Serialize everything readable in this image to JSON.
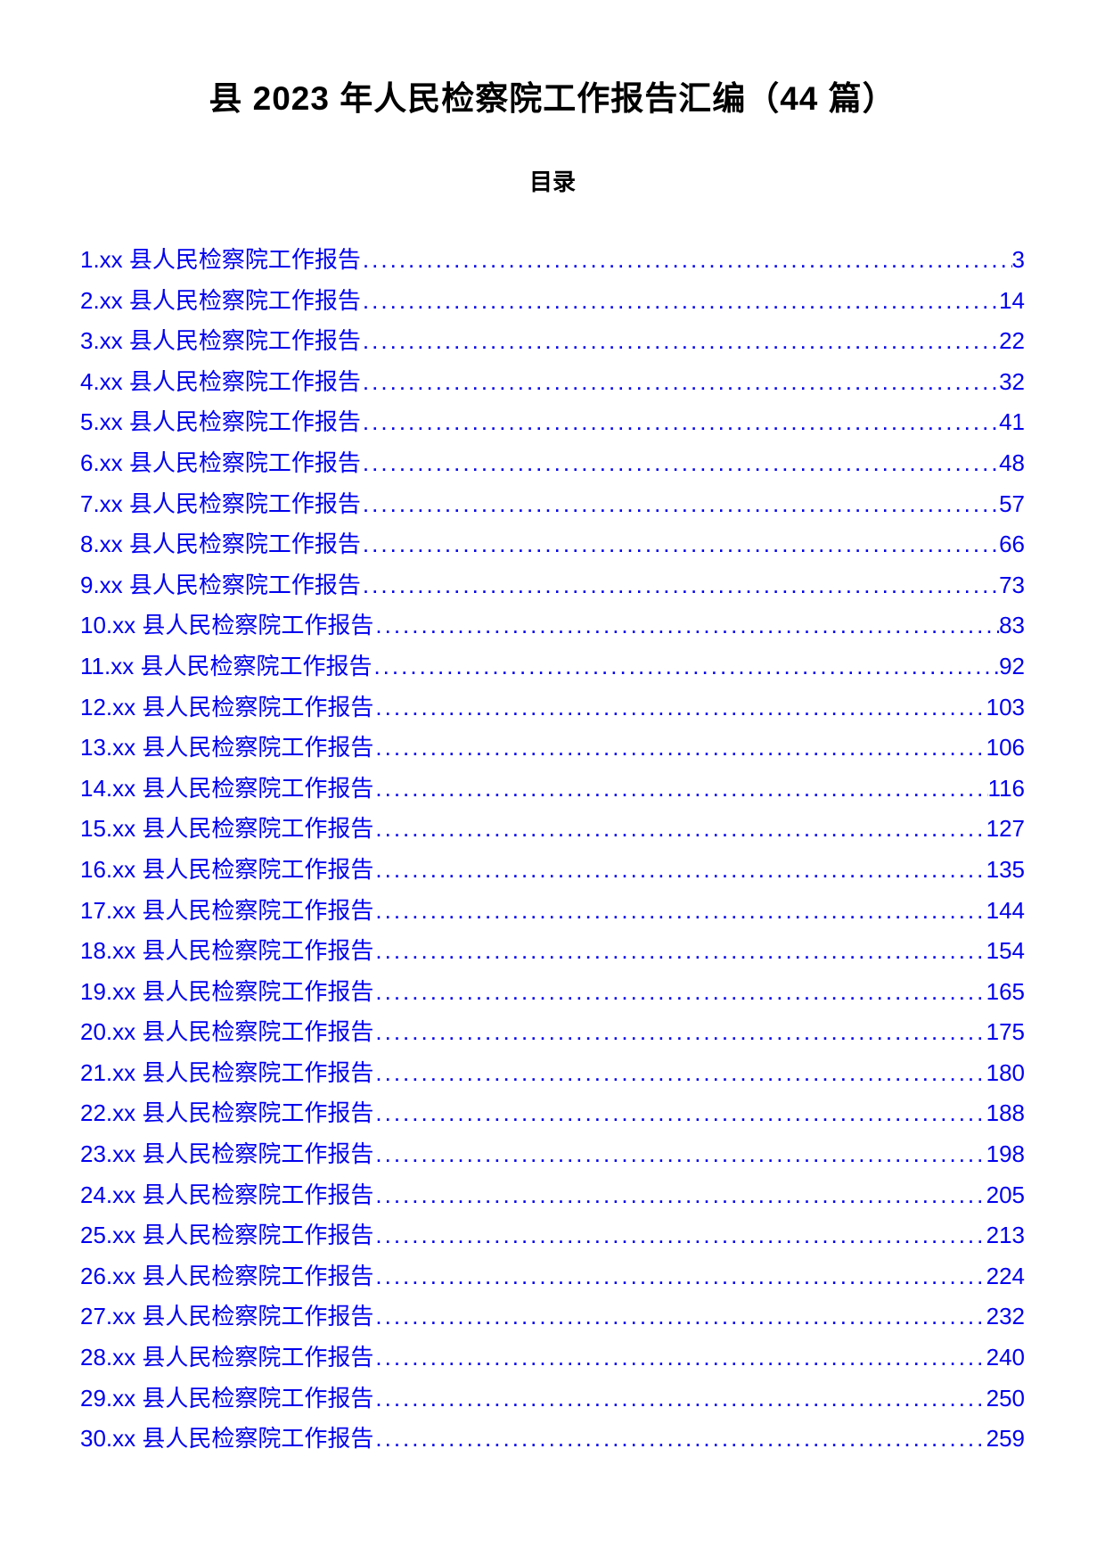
{
  "document": {
    "title": "县 2023 年人民检察院工作报告汇编（44 篇）",
    "toc_heading": "目录",
    "link_color": "#0000ee",
    "text_color": "#000000",
    "background_color": "#ffffff",
    "title_fontsize": 37,
    "body_fontsize": 26,
    "entries": [
      {
        "label": "1.xx 县人民检察院工作报告",
        "page": "3"
      },
      {
        "label": "2.xx 县人民检察院工作报告",
        "page": "14"
      },
      {
        "label": "3.xx 县人民检察院工作报告",
        "page": "22"
      },
      {
        "label": "4.xx 县人民检察院工作报告",
        "page": "32"
      },
      {
        "label": "5.xx 县人民检察院工作报告",
        "page": "41"
      },
      {
        "label": "6.xx 县人民检察院工作报告",
        "page": "48"
      },
      {
        "label": "7.xx 县人民检察院工作报告",
        "page": "57"
      },
      {
        "label": "8.xx 县人民检察院工作报告",
        "page": "66"
      },
      {
        "label": "9.xx 县人民检察院工作报告",
        "page": "73"
      },
      {
        "label": "10.xx 县人民检察院工作报告",
        "page": "83"
      },
      {
        "label": "11.xx 县人民检察院工作报告",
        "page": "92"
      },
      {
        "label": "12.xx 县人民检察院工作报告",
        "page": "103"
      },
      {
        "label": "13.xx 县人民检察院工作报告",
        "page": "106"
      },
      {
        "label": "14.xx 县人民检察院工作报告",
        "page": "116"
      },
      {
        "label": "15.xx 县人民检察院工作报告",
        "page": "127"
      },
      {
        "label": "16.xx 县人民检察院工作报告 ",
        "page": "135"
      },
      {
        "label": "17.xx 县人民检察院工作报告",
        "page": "144"
      },
      {
        "label": "18.xx 县人民检察院工作报告",
        "page": "154"
      },
      {
        "label": "19.xx 县人民检察院工作报告",
        "page": "165"
      },
      {
        "label": "20.xx 县人民检察院工作报告",
        "page": "175"
      },
      {
        "label": "21.xx 县人民检察院工作报告",
        "page": "180"
      },
      {
        "label": "22.xx 县人民检察院工作报告",
        "page": "188"
      },
      {
        "label": "23.xx 县人民检察院工作报告",
        "page": "198"
      },
      {
        "label": "24.xx 县人民检察院工作报告",
        "page": "205"
      },
      {
        "label": "25.xx 县人民检察院工作报告",
        "page": "213"
      },
      {
        "label": "26.xx 县人民检察院工作报告",
        "page": "224"
      },
      {
        "label": "27.xx 县人民检察院工作报告",
        "page": "232"
      },
      {
        "label": "28.xx 县人民检察院工作报告",
        "page": "240"
      },
      {
        "label": "29.xx 县人民检察院工作报告",
        "page": "250"
      },
      {
        "label": "30.xx 县人民检察院工作报告",
        "page": "259"
      }
    ]
  }
}
